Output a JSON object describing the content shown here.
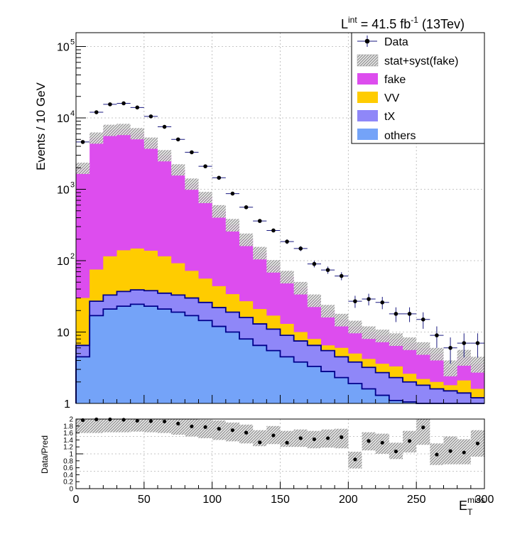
{
  "chart_data": [
    {
      "type": "bar",
      "chart": "main-distribution",
      "lumi_prefix": "L",
      "lumi_sup": "int",
      "lumi_value": " = 41.5 fb",
      "lumi_exp": "-1",
      "lumi_suffix": " (13Tev)",
      "ylabel": "Events / 10 GeV",
      "yscale": "log",
      "ylim": [
        1,
        150000
      ],
      "xlim": [
        0,
        300
      ],
      "y_tick_labels": [
        "1",
        "10",
        "10",
        "10",
        "10",
        "10"
      ],
      "y_tick_exponents": [
        "",
        "",
        "2",
        "3",
        "4",
        "5"
      ],
      "grid": true,
      "legend_position": "top-right",
      "legend": [
        {
          "label": "Data",
          "kind": "marker"
        },
        {
          "label": "stat+syst(fake)",
          "kind": "hatch"
        },
        {
          "label": "fake",
          "kind": "fill",
          "color": "#dd4dee"
        },
        {
          "label": "VV",
          "kind": "fill",
          "color": "#ffcc00"
        },
        {
          "label": "tX",
          "kind": "fill",
          "color": "#8f87f8"
        },
        {
          "label": "others",
          "kind": "fill",
          "color": "#74a3f8"
        }
      ],
      "bin_edges": [
        0,
        10,
        20,
        30,
        40,
        50,
        60,
        70,
        80,
        90,
        100,
        110,
        120,
        130,
        140,
        150,
        160,
        170,
        180,
        190,
        200,
        210,
        220,
        230,
        240,
        250,
        260,
        270,
        280,
        290,
        300
      ],
      "series": [
        {
          "name": "others",
          "color": "#74a3f8",
          "stack_top": [
            4.5,
            17,
            21,
            23,
            24.5,
            23,
            21,
            19,
            17,
            14.5,
            12,
            10,
            8,
            6.5,
            5.5,
            4.5,
            3.8,
            3.3,
            2.8,
            2.3,
            1.9,
            1.6,
            1.3,
            1.1,
            1.05,
            1.0,
            1.0,
            1.0,
            1.0,
            1.0
          ]
        },
        {
          "name": "tX",
          "color": "#8f87f8",
          "stack_top": [
            6.5,
            27,
            33,
            37,
            39,
            38,
            35,
            33,
            30,
            26,
            22,
            19,
            16,
            13,
            11,
            9,
            7.5,
            6.5,
            5.5,
            4.5,
            3.8,
            3.2,
            2.7,
            2.3,
            2.0,
            1.8,
            1.6,
            1.5,
            1.4,
            1.2
          ]
        },
        {
          "name": "VV",
          "color": "#ffcc00",
          "stack_top": [
            30,
            75,
            115,
            140,
            148,
            138,
            115,
            92,
            72,
            56,
            44,
            34,
            27,
            21,
            17,
            13,
            10,
            8,
            6.5,
            6,
            5,
            4.2,
            3.6,
            3.3,
            2.6,
            2.2,
            2.0,
            1.8,
            2.1,
            1.6
          ]
        },
        {
          "name": "fake",
          "color": "#dd4dee",
          "stack_top": [
            2000,
            5300,
            6800,
            7000,
            6100,
            4500,
            3000,
            1900,
            1200,
            780,
            500,
            320,
            200,
            130,
            85,
            60,
            42,
            28,
            20,
            15,
            12,
            10,
            9,
            8,
            7,
            6,
            5,
            3.2,
            4.5,
            3.6
          ]
        }
      ],
      "band_half_width": [
        0.18,
        0.18,
        0.18,
        0.18,
        0.18,
        0.18,
        0.18,
        0.18,
        0.18,
        0.18,
        0.2,
        0.2,
        0.2,
        0.2,
        0.2,
        0.2,
        0.2,
        0.2,
        0.2,
        0.2,
        0.2,
        0.2,
        0.2,
        0.2,
        0.2,
        0.2,
        0.2,
        0.25,
        0.25,
        0.25
      ],
      "data": {
        "name": "Data",
        "x": [
          5,
          15,
          25,
          35,
          45,
          55,
          65,
          75,
          85,
          95,
          105,
          115,
          125,
          135,
          145,
          155,
          165,
          175,
          185,
          195,
          205,
          215,
          225,
          235,
          245,
          255,
          265,
          275,
          285,
          295
        ],
        "y": [
          4600,
          12000,
          15500,
          16000,
          14000,
          10500,
          7500,
          5000,
          3300,
          2100,
          1450,
          870,
          560,
          360,
          265,
          185,
          148,
          90,
          74,
          61,
          27,
          29,
          26,
          18,
          18,
          15,
          9,
          6,
          7,
          7
        ],
        "yerr": [
          70,
          110,
          125,
          127,
          118,
          102,
          87,
          71,
          57,
          46,
          38,
          30,
          24,
          19,
          16,
          14,
          12,
          9.5,
          8.6,
          7.8,
          5.2,
          5.4,
          5.1,
          4.2,
          4.2,
          3.9,
          3,
          2.4,
          2.6,
          2.6
        ]
      }
    },
    {
      "type": "scatter",
      "chart": "ratio",
      "ylabel": "Data/Pred",
      "xlabel": "E",
      "xlabel_sub": "T",
      "xlabel_sup": "miss",
      "xlim": [
        0,
        300
      ],
      "ylim": [
        0,
        2
      ],
      "x_tick_labels": [
        "0",
        "50",
        "100",
        "150",
        "200",
        "250",
        "300"
      ],
      "y_tick_labels": [
        "0",
        "0.2",
        "0.4",
        "0.6",
        "0.8",
        "1",
        "1.2",
        "1.4",
        "1.6",
        "1.8",
        "2"
      ],
      "x": [
        5,
        15,
        25,
        35,
        45,
        55,
        65,
        75,
        85,
        95,
        105,
        115,
        125,
        135,
        145,
        155,
        165,
        175,
        185,
        195,
        205,
        215,
        225,
        235,
        245,
        255,
        265,
        275,
        285,
        295
      ],
      "ratio": [
        1.96,
        1.98,
        2.0,
        1.98,
        1.95,
        1.96,
        1.94,
        1.88,
        1.85,
        1.8,
        1.74,
        1.69,
        1.6,
        1.57,
        1.58,
        1.52,
        1.51,
        1.38,
        1.45,
        1.41,
        1.45,
        1.47,
        1.37,
        1.36,
        1.35,
        1.41,
        1.3,
        1.23,
        1.37,
        1.42
      ],
      "data_ratio": [
        1.97,
        1.99,
        1.99,
        1.98,
        1.95,
        1.94,
        1.93,
        1.87,
        1.79,
        1.77,
        1.72,
        1.68,
        1.61,
        1.33,
        1.53,
        1.32,
        1.45,
        1.42,
        1.45,
        1.48,
        0.84,
        1.37,
        1.32,
        1.07,
        1.37,
        1.76,
        0.98,
        1.08,
        1.04,
        1.3
      ],
      "band_low": [
        1.6,
        1.6,
        1.62,
        1.62,
        1.64,
        1.62,
        1.6,
        1.55,
        1.5,
        1.45,
        1.4,
        1.36,
        1.3,
        1.22,
        1.28,
        1.2,
        1.2,
        1.16,
        1.18,
        1.16,
        0.58,
        1.1,
        1.0,
        0.85,
        1.04,
        1.26,
        0.68,
        0.7,
        0.7,
        0.92
      ],
      "band_high": [
        2.0,
        2.0,
        2.0,
        2.0,
        2.0,
        2.0,
        2.0,
        2.0,
        2.0,
        1.98,
        1.96,
        1.9,
        1.84,
        1.68,
        1.8,
        1.66,
        1.7,
        1.66,
        1.7,
        1.72,
        1.06,
        1.62,
        1.58,
        1.32,
        1.66,
        2.0,
        1.3,
        1.5,
        1.42,
        1.68
      ]
    }
  ]
}
